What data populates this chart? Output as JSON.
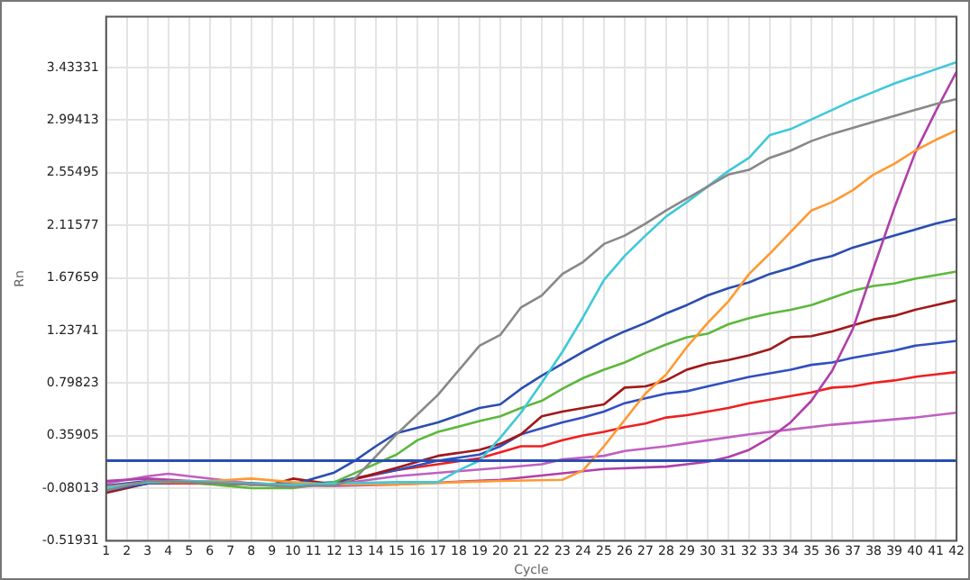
{
  "chart_data": {
    "type": "line",
    "xlabel": "Cycle",
    "ylabel": "Rn",
    "xlim": [
      1,
      42
    ],
    "xticks": [
      1,
      2,
      3,
      4,
      5,
      6,
      7,
      8,
      9,
      10,
      11,
      12,
      13,
      14,
      15,
      16,
      17,
      18,
      19,
      20,
      21,
      22,
      23,
      24,
      25,
      26,
      27,
      28,
      29,
      30,
      31,
      32,
      33,
      34,
      35,
      36,
      37,
      38,
      39,
      40,
      41,
      42
    ],
    "ylim": [
      -0.51931,
      3.86
    ],
    "yticks": [
      -0.51931,
      -0.08013,
      0.35905,
      0.79823,
      1.23741,
      1.67659,
      2.11577,
      2.55495,
      2.99413,
      3.43331
    ],
    "grid": true,
    "legend": false,
    "marker": "none",
    "line_style": "solid",
    "ref_lines": [
      {
        "axis": "y",
        "value": 0.15,
        "color": "#2a4db0"
      }
    ],
    "series": [
      {
        "color": "#888888",
        "x": [
          1,
          3,
          5,
          8,
          10,
          11,
          12,
          13,
          15,
          17,
          19,
          20,
          21,
          22,
          23,
          24,
          25,
          26,
          27,
          28,
          29,
          30,
          31,
          32,
          33,
          34,
          35,
          36,
          37,
          38,
          39,
          40,
          41,
          42
        ],
        "values": [
          -0.1,
          -0.02,
          -0.03,
          -0.05,
          -0.07,
          -0.06,
          -0.06,
          0.0,
          0.37,
          0.7,
          1.11,
          1.2,
          1.43,
          1.53,
          1.71,
          1.81,
          1.96,
          2.03,
          2.13,
          2.24,
          2.34,
          2.44,
          2.54,
          2.58,
          2.68,
          2.74,
          2.82,
          2.88,
          2.93,
          2.98,
          3.03,
          3.08,
          3.13,
          3.17
        ]
      },
      {
        "color": "#40c8d8",
        "x": [
          1,
          3,
          5,
          8,
          10,
          12,
          15,
          17,
          18,
          19,
          20,
          21,
          22,
          23,
          24,
          25,
          26,
          27,
          28,
          29,
          30,
          31,
          32,
          33,
          34,
          35,
          36,
          37,
          38,
          39,
          40,
          41,
          42
        ],
        "values": [
          -0.08,
          -0.03,
          -0.02,
          -0.04,
          -0.05,
          -0.04,
          -0.03,
          -0.03,
          0.07,
          0.15,
          0.34,
          0.55,
          0.8,
          1.06,
          1.35,
          1.66,
          1.86,
          2.03,
          2.19,
          2.31,
          2.44,
          2.57,
          2.68,
          2.87,
          2.92,
          3.0,
          3.08,
          3.16,
          3.23,
          3.3,
          3.36,
          3.42,
          3.48
        ]
      },
      {
        "color": "#ff9933",
        "x": [
          1,
          3,
          5,
          8,
          10,
          12,
          15,
          18,
          20,
          23,
          24,
          25,
          26,
          27,
          28,
          29,
          30,
          31,
          32,
          33,
          34,
          35,
          36,
          37,
          38,
          39,
          40,
          41,
          42
        ],
        "values": [
          -0.07,
          -0.03,
          -0.03,
          0.0,
          -0.03,
          -0.05,
          -0.05,
          -0.03,
          -0.02,
          -0.01,
          0.07,
          0.27,
          0.49,
          0.71,
          0.87,
          1.1,
          1.3,
          1.48,
          1.71,
          1.88,
          2.06,
          2.24,
          2.31,
          2.41,
          2.54,
          2.63,
          2.74,
          2.83,
          2.91
        ]
      },
      {
        "color": "#b03fa8",
        "x": [
          1,
          3,
          5,
          8,
          10,
          12,
          15,
          20,
          25,
          28,
          30,
          31,
          32,
          33,
          34,
          35,
          36,
          37,
          38,
          39,
          40,
          41,
          42
        ],
        "values": [
          -0.02,
          0.0,
          -0.02,
          -0.05,
          -0.05,
          -0.06,
          -0.05,
          -0.01,
          0.08,
          0.1,
          0.14,
          0.18,
          0.24,
          0.34,
          0.47,
          0.65,
          0.9,
          1.25,
          1.76,
          2.26,
          2.72,
          3.07,
          3.4
        ]
      },
      {
        "color": "#2a4db0",
        "x": [
          1,
          3,
          5,
          8,
          10,
          12,
          13,
          14,
          15,
          17,
          19,
          20,
          21,
          22,
          23,
          24,
          25,
          26,
          27,
          28,
          29,
          30,
          31,
          32,
          33,
          34,
          35,
          36,
          37,
          38,
          39,
          40,
          41,
          42
        ],
        "values": [
          -0.1,
          -0.04,
          -0.03,
          -0.05,
          -0.05,
          0.05,
          0.15,
          0.27,
          0.38,
          0.47,
          0.59,
          0.62,
          0.75,
          0.86,
          0.96,
          1.06,
          1.15,
          1.23,
          1.3,
          1.38,
          1.45,
          1.53,
          1.59,
          1.64,
          1.71,
          1.76,
          1.82,
          1.86,
          1.93,
          1.98,
          2.03,
          2.08,
          2.13,
          2.17
        ]
      },
      {
        "color": "#5cb83c",
        "x": [
          1,
          3,
          5,
          8,
          10,
          12,
          15,
          16,
          17,
          19,
          20,
          21,
          22,
          23,
          24,
          25,
          26,
          27,
          28,
          29,
          30,
          31,
          32,
          33,
          34,
          35,
          36,
          37,
          38,
          39,
          40,
          41,
          42
        ],
        "values": [
          -0.08,
          -0.03,
          -0.03,
          -0.08,
          -0.08,
          -0.03,
          0.2,
          0.32,
          0.39,
          0.48,
          0.52,
          0.59,
          0.65,
          0.75,
          0.84,
          0.91,
          0.97,
          1.05,
          1.12,
          1.18,
          1.21,
          1.29,
          1.34,
          1.38,
          1.41,
          1.45,
          1.51,
          1.57,
          1.61,
          1.63,
          1.67,
          1.7,
          1.73
        ]
      },
      {
        "color": "#a01818",
        "x": [
          1,
          3,
          5,
          8,
          9,
          10,
          12,
          15,
          17,
          19,
          20,
          21,
          22,
          23,
          24,
          25,
          26,
          27,
          28,
          29,
          30,
          31,
          32,
          33,
          34,
          35,
          36,
          37,
          38,
          39,
          40,
          41,
          42
        ],
        "values": [
          -0.12,
          -0.04,
          -0.03,
          -0.04,
          -0.05,
          0.0,
          -0.05,
          0.09,
          0.19,
          0.24,
          0.29,
          0.37,
          0.52,
          0.56,
          0.59,
          0.62,
          0.76,
          0.77,
          0.82,
          0.91,
          0.96,
          0.99,
          1.03,
          1.08,
          1.18,
          1.19,
          1.23,
          1.28,
          1.33,
          1.36,
          1.41,
          1.45,
          1.49
        ]
      },
      {
        "color": "#3050c0",
        "x": [
          1,
          3,
          5,
          8,
          10,
          12,
          15,
          17,
          19,
          20,
          21,
          22,
          23,
          24,
          25,
          26,
          27,
          28,
          29,
          30,
          31,
          32,
          33,
          34,
          35,
          36,
          37,
          38,
          39,
          40,
          41,
          42
        ],
        "values": [
          -0.06,
          -0.02,
          -0.03,
          -0.04,
          -0.05,
          -0.03,
          0.07,
          0.15,
          0.2,
          0.27,
          0.37,
          0.42,
          0.47,
          0.51,
          0.56,
          0.63,
          0.67,
          0.71,
          0.73,
          0.77,
          0.81,
          0.85,
          0.88,
          0.91,
          0.95,
          0.97,
          1.01,
          1.04,
          1.07,
          1.11,
          1.13,
          1.15
        ]
      },
      {
        "color": "#ee2020",
        "x": [
          1,
          3,
          5,
          8,
          10,
          12,
          15,
          17,
          19,
          20,
          21,
          22,
          23,
          24,
          25,
          26,
          27,
          28,
          29,
          30,
          31,
          32,
          33,
          34,
          35,
          36,
          37,
          38,
          39,
          40,
          41,
          42
        ],
        "values": [
          -0.1,
          -0.04,
          -0.04,
          -0.05,
          -0.04,
          -0.04,
          0.07,
          0.12,
          0.17,
          0.22,
          0.27,
          0.27,
          0.32,
          0.36,
          0.39,
          0.43,
          0.46,
          0.51,
          0.53,
          0.56,
          0.59,
          0.63,
          0.66,
          0.69,
          0.72,
          0.76,
          0.77,
          0.8,
          0.82,
          0.85,
          0.87,
          0.89
        ]
      },
      {
        "color": "#c060c0",
        "x": [
          1,
          3,
          4,
          5,
          8,
          10,
          12,
          15,
          20,
          22,
          23,
          25,
          26,
          28,
          30,
          32,
          34,
          36,
          38,
          40,
          42
        ],
        "values": [
          -0.04,
          0.02,
          0.04,
          0.02,
          -0.04,
          -0.05,
          -0.05,
          0.02,
          0.09,
          0.12,
          0.16,
          0.19,
          0.23,
          0.27,
          0.32,
          0.37,
          0.41,
          0.45,
          0.48,
          0.51,
          0.55
        ]
      }
    ]
  }
}
